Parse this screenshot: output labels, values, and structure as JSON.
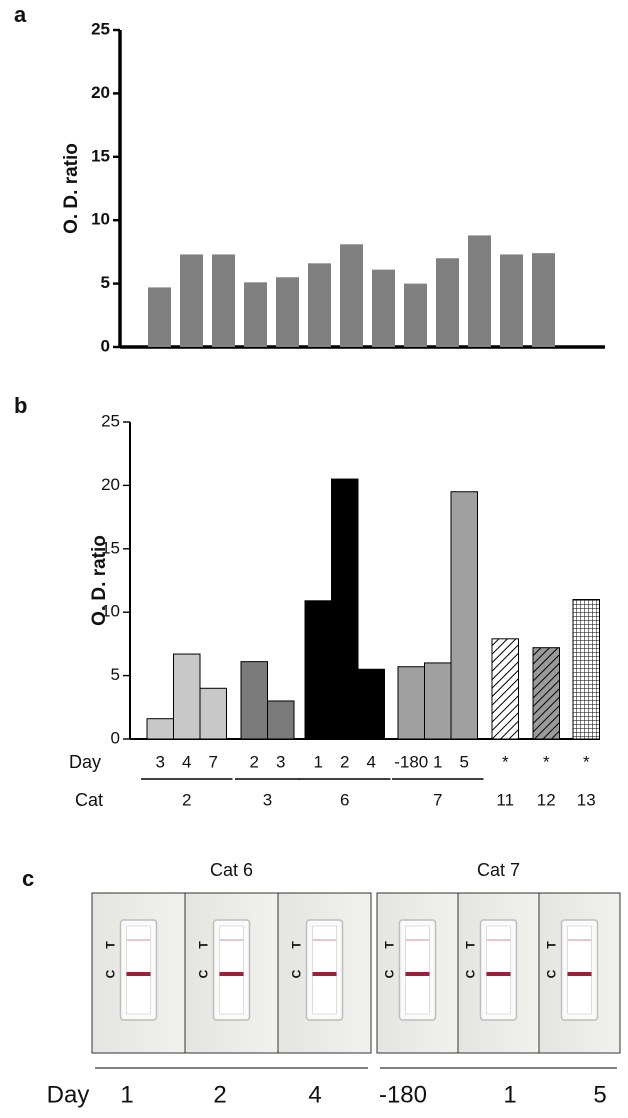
{
  "chart_data": [
    {
      "type": "bar",
      "label": "a",
      "y_label": "O. D. ratio",
      "categories": [
        null,
        null,
        null,
        null,
        null,
        null,
        null,
        null,
        null,
        null,
        null,
        null,
        null
      ],
      "values": [
        4.7,
        7.3,
        7.3,
        5.1,
        5.5,
        6.6,
        8.1,
        6.1,
        5.0,
        7.0,
        8.8,
        7.3,
        7.4
      ],
      "color": "#808080",
      "ylim": [
        0,
        25
      ],
      "yticks": [
        0,
        5,
        10,
        15,
        20,
        25
      ]
    },
    {
      "type": "grouped-bar",
      "label": "b",
      "y_label": "O. D. ratio",
      "day_label": "Day",
      "group_label": "Cat",
      "groups": [
        {
          "name": "2",
          "days": [
            "3",
            "4",
            "7"
          ],
          "values": [
            1.6,
            6.7,
            4.0
          ],
          "color": "#c8c8c8",
          "pattern": "solid"
        },
        {
          "name": "3",
          "days": [
            "2",
            "3"
          ],
          "values": [
            6.1,
            3.0
          ],
          "color": "#7a7a7a",
          "pattern": "solid"
        },
        {
          "name": "6",
          "days": [
            "1",
            "2",
            "4"
          ],
          "values": [
            10.9,
            20.5,
            5.5
          ],
          "color": "#000000",
          "pattern": "solid"
        },
        {
          "name": "7",
          "days": [
            "-180",
            "1",
            "5"
          ],
          "values": [
            5.7,
            6.0,
            19.5
          ],
          "color": "#a0a0a0",
          "pattern": "solid"
        },
        {
          "name": "11",
          "days": [
            "*"
          ],
          "values": [
            7.9
          ],
          "color": "#ffffff",
          "pattern": "hatch"
        },
        {
          "name": "12",
          "days": [
            "*"
          ],
          "values": [
            7.2
          ],
          "color": "#9a9a9a",
          "pattern": "hatch"
        },
        {
          "name": "13",
          "days": [
            "*"
          ],
          "values": [
            11.0
          ],
          "color": "#ffffff",
          "pattern": "grid"
        }
      ],
      "ylim": [
        0,
        25
      ],
      "yticks": [
        0,
        5,
        10,
        15,
        20,
        25
      ]
    }
  ],
  "panel_c": {
    "label": "c",
    "control": "C",
    "test": "T",
    "day_label": "Day",
    "groups": [
      {
        "name": "Cat 6",
        "days": [
          "1",
          "2",
          "4"
        ]
      },
      {
        "name": "Cat 7",
        "days": [
          "-180",
          "1",
          "5"
        ]
      }
    ]
  }
}
